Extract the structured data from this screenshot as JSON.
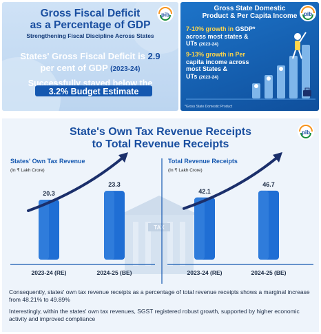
{
  "colors": {
    "brand_blue": "#1558b0",
    "dark_blue": "#1a4fa0",
    "accent_yellow": "#ffd64a",
    "arrow_navy": "#1b2f6b",
    "panel_light": "#cfe2f6"
  },
  "panel1": {
    "title_line1": "Gross Fiscal Deficit",
    "title_line2": "as a Percentage of GDP",
    "subtitle": "Strengthening Fiscal Discipline Across States",
    "main_prefix": "States' Gross Fiscal Deficit is",
    "main_value": "2.9",
    "main_suffix": "per cent of GDP",
    "main_year": "(2023-24)",
    "line2": "Successfully stayed below the",
    "line3": "3.2% Budget Estimate",
    "logo_text": "pib"
  },
  "panel2": {
    "title_line1": "Gross State Domestic",
    "title_line2": "Product & Per Capita Income",
    "item1_a": "7-10% growth in",
    "item1_b": "GSDP*",
    "item1_c": "across most states &",
    "item1_d": "UTs",
    "item1_year": "(2023-24)",
    "item2_a": "9-13% growth in Per",
    "item2_b": "capita income across",
    "item2_c": "most States &",
    "item2_d": "UTs",
    "item2_year": "(2023-24)",
    "footnote": "*Gross State Domestic Product",
    "logo_text": "pib"
  },
  "panel3": {
    "title_line1": "State's Own Tax Revenue Receipts",
    "title_line2": "to Total Revenue Receipts",
    "logo_text": "pib",
    "tax_sign": "TAX",
    "note1": "Consequently, states' own tax revenue receipts as a percentage of total revenue receipts shows a marginal increase from 48.21% to 49.89%",
    "note2": "Interestingly, within the states' own tax revenues, SGST registered robust growth, supported by higher economic activity and improved compliance"
  },
  "chart_data": [
    {
      "type": "bar",
      "title": "States' Own Tax Revenue",
      "ylabel": "(In ₹ Lakh Crore)",
      "categories": [
        "2023-24 (RE)",
        "2024-25 (BE)"
      ],
      "values": [
        20.3,
        23.3
      ],
      "value_labels": [
        "20.3",
        "23.3"
      ],
      "ylim": [
        0,
        35
      ],
      "grid": false,
      "legend": "none"
    },
    {
      "type": "bar",
      "title": "Total Revenue Receipts",
      "ylabel": "(In ₹ Lakh Crore)",
      "categories": [
        "2023-24 (RE)",
        "2024-25 (BE)"
      ],
      "values": [
        42.1,
        46.7
      ],
      "value_labels": [
        "42.1",
        "46.7"
      ],
      "ylim": [
        0,
        70
      ],
      "grid": false,
      "legend": "none"
    }
  ]
}
